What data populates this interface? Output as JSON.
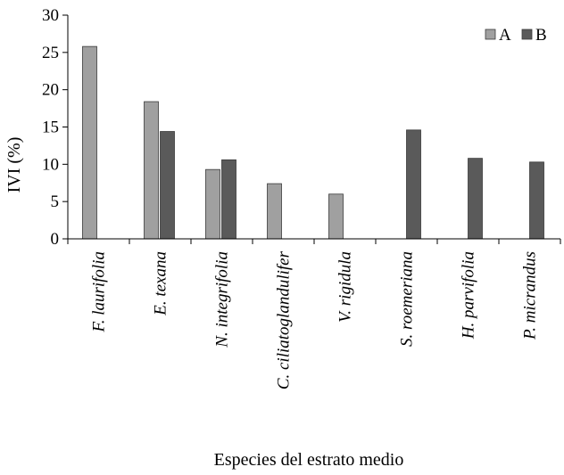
{
  "chart_data": {
    "type": "bar",
    "xlabel": "Especies del estrato medio",
    "ylabel": "IVI (%)",
    "ylim": [
      0,
      30
    ],
    "yticks": [
      0,
      5,
      10,
      15,
      20,
      25,
      30
    ],
    "grid": false,
    "legend_position": "top-right",
    "categories": [
      "F. laurifolia",
      "E. texana",
      "N. integrifolia",
      "C. ciliatoglandulifer",
      "V. rigidula",
      "S. roemeriana",
      "H. parvifolia",
      "P. micrandus"
    ],
    "series": [
      {
        "name": "A",
        "color": "#a0a0a0",
        "values": [
          25.8,
          18.4,
          9.3,
          7.4,
          6.0,
          0,
          0,
          0
        ]
      },
      {
        "name": "B",
        "color": "#5a5a5a",
        "values": [
          0,
          14.4,
          10.6,
          0,
          0,
          14.6,
          10.8,
          10.3
        ]
      }
    ]
  }
}
